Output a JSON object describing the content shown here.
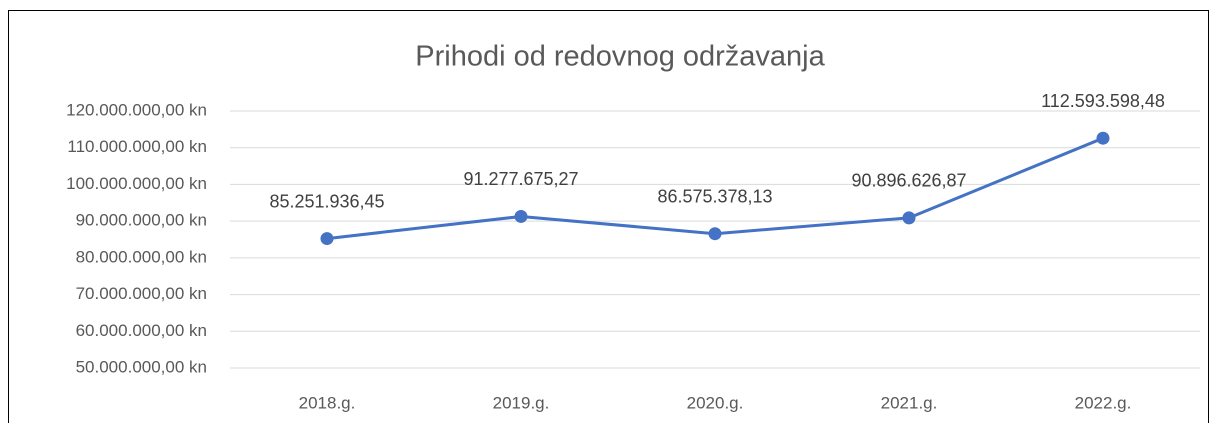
{
  "chart_data": {
    "type": "line",
    "title": "Prihodi od redovnog održavanja",
    "categories": [
      "2018.g.",
      "2019.g.",
      "2020.g.",
      "2021.g.",
      "2022.g."
    ],
    "series": [
      {
        "name": "Prihodi od redovnog održavanja",
        "color": "#4472c4",
        "values": [
          85251936.45,
          91277675.27,
          86575378.13,
          90896626.87,
          112593598.48
        ],
        "value_labels": [
          "85.251.936,45",
          "91.277.675,27",
          "86.575.378,13",
          "90.896.626,87",
          "112.593.598,48"
        ]
      }
    ],
    "ylim": [
      50000000,
      120000000
    ],
    "yticks": [
      {
        "value": 50000000,
        "label": "50.000.000,00 kn"
      },
      {
        "value": 60000000,
        "label": "60.000.000,00 kn"
      },
      {
        "value": 70000000,
        "label": "70.000.000,00 kn"
      },
      {
        "value": 80000000,
        "label": "80.000.000,00 kn"
      },
      {
        "value": 90000000,
        "label": "90.000.000,00 kn"
      },
      {
        "value": 100000000,
        "label": "100.000.000,00 kn"
      },
      {
        "value": 110000000,
        "label": "110.000.000,00 kn"
      },
      {
        "value": 120000000,
        "label": "120.000.000,00 kn"
      }
    ],
    "grid": true
  }
}
